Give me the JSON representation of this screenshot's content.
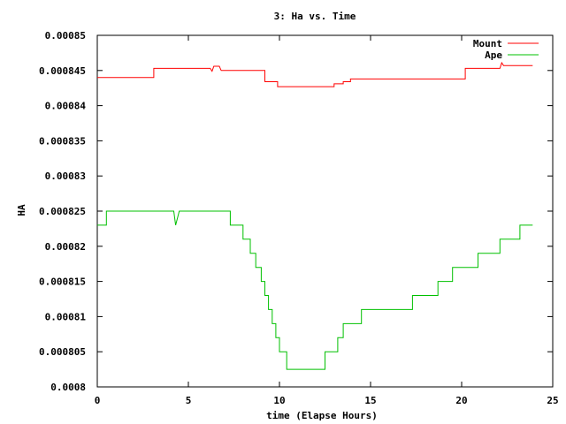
{
  "chart_data": {
    "type": "line",
    "title": "3: Ha vs. Time",
    "xlabel": "time (Elapse Hours)",
    "ylabel": "HA",
    "xlim": [
      0,
      25
    ],
    "ylim": [
      0.0008,
      0.00085
    ],
    "x_ticks": [
      0,
      5,
      10,
      15,
      20,
      25
    ],
    "x_tick_labels": [
      "0",
      "5",
      "10",
      "15",
      "20",
      "25"
    ],
    "y_ticks": [
      0.0008,
      0.000805,
      0.00081,
      0.000815,
      0.00082,
      0.000825,
      0.00083,
      0.000835,
      0.00084,
      0.000845,
      0.00085
    ],
    "y_tick_labels": [
      "0.0008",
      "0.000805",
      "0.00081",
      "0.000815",
      "0.00082",
      "0.000825",
      "0.00083",
      "0.000835",
      "0.00084",
      "0.000845",
      "0.00085"
    ],
    "grid": false,
    "legend_position": "top-right",
    "series": [
      {
        "name": "Mount",
        "color": "#ff0000",
        "points": [
          [
            0,
            0.000844
          ],
          [
            3.1,
            0.000844
          ],
          [
            3.1,
            0.0008453
          ],
          [
            6.2,
            0.0008453
          ],
          [
            6.3,
            0.0008449
          ],
          [
            6.4,
            0.0008456
          ],
          [
            6.7,
            0.0008456
          ],
          [
            6.8,
            0.000845
          ],
          [
            9.2,
            0.000845
          ],
          [
            9.2,
            0.0008434
          ],
          [
            9.9,
            0.0008434
          ],
          [
            9.9,
            0.0008427
          ],
          [
            13.0,
            0.0008427
          ],
          [
            13.0,
            0.0008431
          ],
          [
            13.5,
            0.0008431
          ],
          [
            13.5,
            0.0008434
          ],
          [
            13.9,
            0.0008434
          ],
          [
            13.9,
            0.0008438
          ],
          [
            20.2,
            0.0008438
          ],
          [
            20.2,
            0.0008453
          ],
          [
            22.1,
            0.0008453
          ],
          [
            22.2,
            0.0008461
          ],
          [
            22.3,
            0.0008457
          ],
          [
            23.9,
            0.0008457
          ]
        ]
      },
      {
        "name": "Ape",
        "color": "#00c000",
        "points": [
          [
            0,
            0.000823
          ],
          [
            0.5,
            0.000823
          ],
          [
            0.5,
            0.000825
          ],
          [
            4.2,
            0.000825
          ],
          [
            4.3,
            0.000823
          ],
          [
            4.5,
            0.000825
          ],
          [
            7.3,
            0.000825
          ],
          [
            7.3,
            0.000823
          ],
          [
            8.0,
            0.000823
          ],
          [
            8.0,
            0.000821
          ],
          [
            8.4,
            0.000821
          ],
          [
            8.4,
            0.000819
          ],
          [
            8.7,
            0.000819
          ],
          [
            8.7,
            0.000817
          ],
          [
            9.0,
            0.000817
          ],
          [
            9.0,
            0.000815
          ],
          [
            9.2,
            0.000815
          ],
          [
            9.2,
            0.000813
          ],
          [
            9.4,
            0.000813
          ],
          [
            9.4,
            0.000811
          ],
          [
            9.6,
            0.000811
          ],
          [
            9.6,
            0.000809
          ],
          [
            9.8,
            0.000809
          ],
          [
            9.8,
            0.000807
          ],
          [
            10.0,
            0.000807
          ],
          [
            10.0,
            0.000805
          ],
          [
            10.4,
            0.000805
          ],
          [
            10.4,
            0.0008025
          ],
          [
            12.5,
            0.0008025
          ],
          [
            12.5,
            0.000805
          ],
          [
            13.2,
            0.000805
          ],
          [
            13.2,
            0.000807
          ],
          [
            13.5,
            0.000807
          ],
          [
            13.5,
            0.000809
          ],
          [
            14.5,
            0.000809
          ],
          [
            14.5,
            0.000811
          ],
          [
            17.3,
            0.000811
          ],
          [
            17.3,
            0.000813
          ],
          [
            18.7,
            0.000813
          ],
          [
            18.7,
            0.000815
          ],
          [
            19.5,
            0.000815
          ],
          [
            19.5,
            0.000817
          ],
          [
            20.9,
            0.000817
          ],
          [
            20.9,
            0.000819
          ],
          [
            22.1,
            0.000819
          ],
          [
            22.1,
            0.000821
          ],
          [
            23.2,
            0.000821
          ],
          [
            23.2,
            0.000823
          ],
          [
            23.9,
            0.000823
          ]
        ]
      }
    ]
  }
}
